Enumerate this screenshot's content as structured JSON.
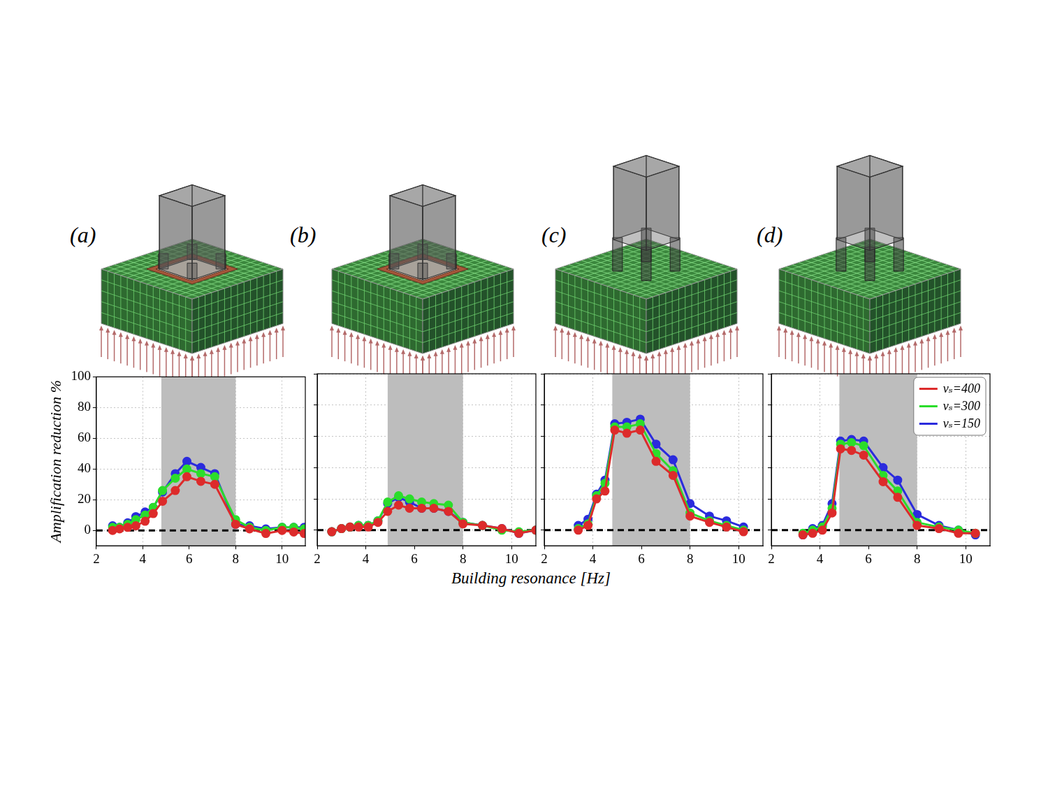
{
  "chart_data": [
    {
      "type": "line",
      "label": "(a)",
      "y_label": "Amplification reduction %",
      "xlim": [
        2,
        11
      ],
      "xticks": [
        2,
        4,
        6,
        8,
        10
      ],
      "ylim": [
        -10,
        100
      ],
      "yticks": [
        0,
        20,
        40,
        60,
        80,
        100
      ],
      "grid": true,
      "tick_labels": true,
      "marker": "circle",
      "band": [
        4.8,
        8
      ],
      "reference_line": 0,
      "x": [
        2.7,
        3.0,
        3.35,
        3.7,
        4.1,
        4.45,
        4.85,
        5.4,
        5.9,
        6.5,
        7.1,
        8.0,
        8.6,
        9.3,
        10.0,
        10.5,
        10.95
      ],
      "series": [
        {
          "name": "vₛ=400",
          "color": "#dd2b2b",
          "values": [
            0,
            1,
            2,
            3,
            6,
            11,
            19,
            26,
            35,
            32,
            30,
            4,
            1,
            -2,
            0,
            -1,
            -2
          ]
        },
        {
          "name": "vₛ=300",
          "color": "#2bdd2b",
          "values": [
            2,
            2,
            4,
            7,
            10,
            15,
            26,
            34,
            40,
            37,
            35,
            7,
            2,
            0,
            2,
            2,
            1
          ]
        },
        {
          "name": "vₛ=150",
          "color": "#2b2bdd",
          "values": [
            3,
            2,
            5,
            9,
            12,
            15,
            25,
            37,
            45,
            41,
            37,
            4,
            3,
            1,
            2,
            2,
            2
          ]
        }
      ]
    },
    {
      "type": "line",
      "label": "(b)",
      "xlim": [
        2,
        11
      ],
      "xticks": [
        2,
        4,
        6,
        8,
        10
      ],
      "ylim": [
        -10,
        100
      ],
      "yticks": [
        0,
        20,
        40,
        60,
        80,
        100
      ],
      "grid": true,
      "tick_labels": "x",
      "marker": "circle",
      "band": [
        4.9,
        8
      ],
      "reference_line": 0,
      "x": [
        2.6,
        3.0,
        3.35,
        3.7,
        4.1,
        4.5,
        4.9,
        5.35,
        5.8,
        6.3,
        6.8,
        7.4,
        8.0,
        8.8,
        9.6,
        10.3,
        11.0
      ],
      "series": [
        {
          "name": "vₛ=400",
          "color": "#dd2b2b",
          "values": [
            -1,
            1,
            2,
            2,
            2,
            5,
            12,
            16,
            14,
            14,
            14,
            12,
            4,
            3,
            1,
            -2,
            0
          ]
        },
        {
          "name": "vₛ=300",
          "color": "#2bdd2b",
          "values": [
            -1,
            1,
            2,
            3,
            3,
            6,
            18,
            22,
            20,
            18,
            17,
            16,
            5,
            3,
            0,
            -1,
            0
          ]
        },
        {
          "name": "vₛ=150",
          "color": "#2b2bdd",
          "values": [
            -1,
            1,
            2,
            3,
            3,
            6,
            17,
            21,
            18,
            14,
            14,
            12,
            5,
            3,
            1,
            -2,
            0
          ]
        }
      ]
    },
    {
      "type": "line",
      "label": "(c)",
      "xlim": [
        2,
        11
      ],
      "xticks": [
        2,
        4,
        6,
        8,
        10
      ],
      "ylim": [
        -10,
        100
      ],
      "yticks": [
        0,
        20,
        40,
        60,
        80,
        100
      ],
      "grid": true,
      "tick_labels": "x",
      "marker": "circle",
      "band": [
        4.8,
        8
      ],
      "reference_line": 0,
      "x": [
        3.4,
        3.8,
        4.15,
        4.5,
        4.9,
        5.4,
        5.95,
        6.6,
        7.3,
        8.0,
        8.8,
        9.5,
        10.2
      ],
      "series": [
        {
          "name": "vₛ=400",
          "color": "#dd2b2b",
          "values": [
            0,
            3,
            20,
            25,
            64,
            62,
            64,
            44,
            35,
            9,
            5,
            2,
            -1
          ]
        },
        {
          "name": "vₛ=300",
          "color": "#2bdd2b",
          "values": [
            1,
            4,
            22,
            30,
            66,
            66,
            68,
            49,
            38,
            11,
            6,
            3,
            0
          ]
        },
        {
          "name": "vₛ=150",
          "color": "#2b2bdd",
          "values": [
            3,
            7,
            23,
            32,
            68,
            69,
            71,
            55,
            45,
            17,
            9,
            6,
            2
          ]
        }
      ]
    },
    {
      "type": "line",
      "label": "(d)",
      "legend": "top right",
      "xlim": [
        2,
        11
      ],
      "xticks": [
        2,
        4,
        6,
        8,
        10
      ],
      "ylim": [
        -10,
        100
      ],
      "yticks": [
        0,
        20,
        40,
        60,
        80,
        100
      ],
      "grid": true,
      "tick_labels": "x",
      "marker": "circle",
      "band": [
        4.8,
        8
      ],
      "reference_line": 0,
      "x": [
        3.3,
        3.7,
        4.1,
        4.5,
        4.85,
        5.3,
        5.8,
        6.6,
        7.2,
        8.0,
        8.9,
        9.7,
        10.4
      ],
      "series": [
        {
          "name": "vₛ=400",
          "color": "#dd2b2b",
          "values": [
            -3,
            -2,
            0,
            11,
            52,
            51,
            48,
            31,
            21,
            3,
            1,
            -2,
            -2
          ]
        },
        {
          "name": "vₛ=300",
          "color": "#2bdd2b",
          "values": [
            -2,
            0,
            2,
            14,
            55,
            56,
            54,
            35,
            25,
            5,
            2,
            0,
            -2
          ]
        },
        {
          "name": "vₛ=150",
          "color": "#2b2bdd",
          "values": [
            -3,
            1,
            3,
            17,
            57,
            58,
            57,
            40,
            32,
            10,
            3,
            0,
            -3
          ]
        }
      ]
    }
  ],
  "x_label": "Building resonance [Hz]"
}
